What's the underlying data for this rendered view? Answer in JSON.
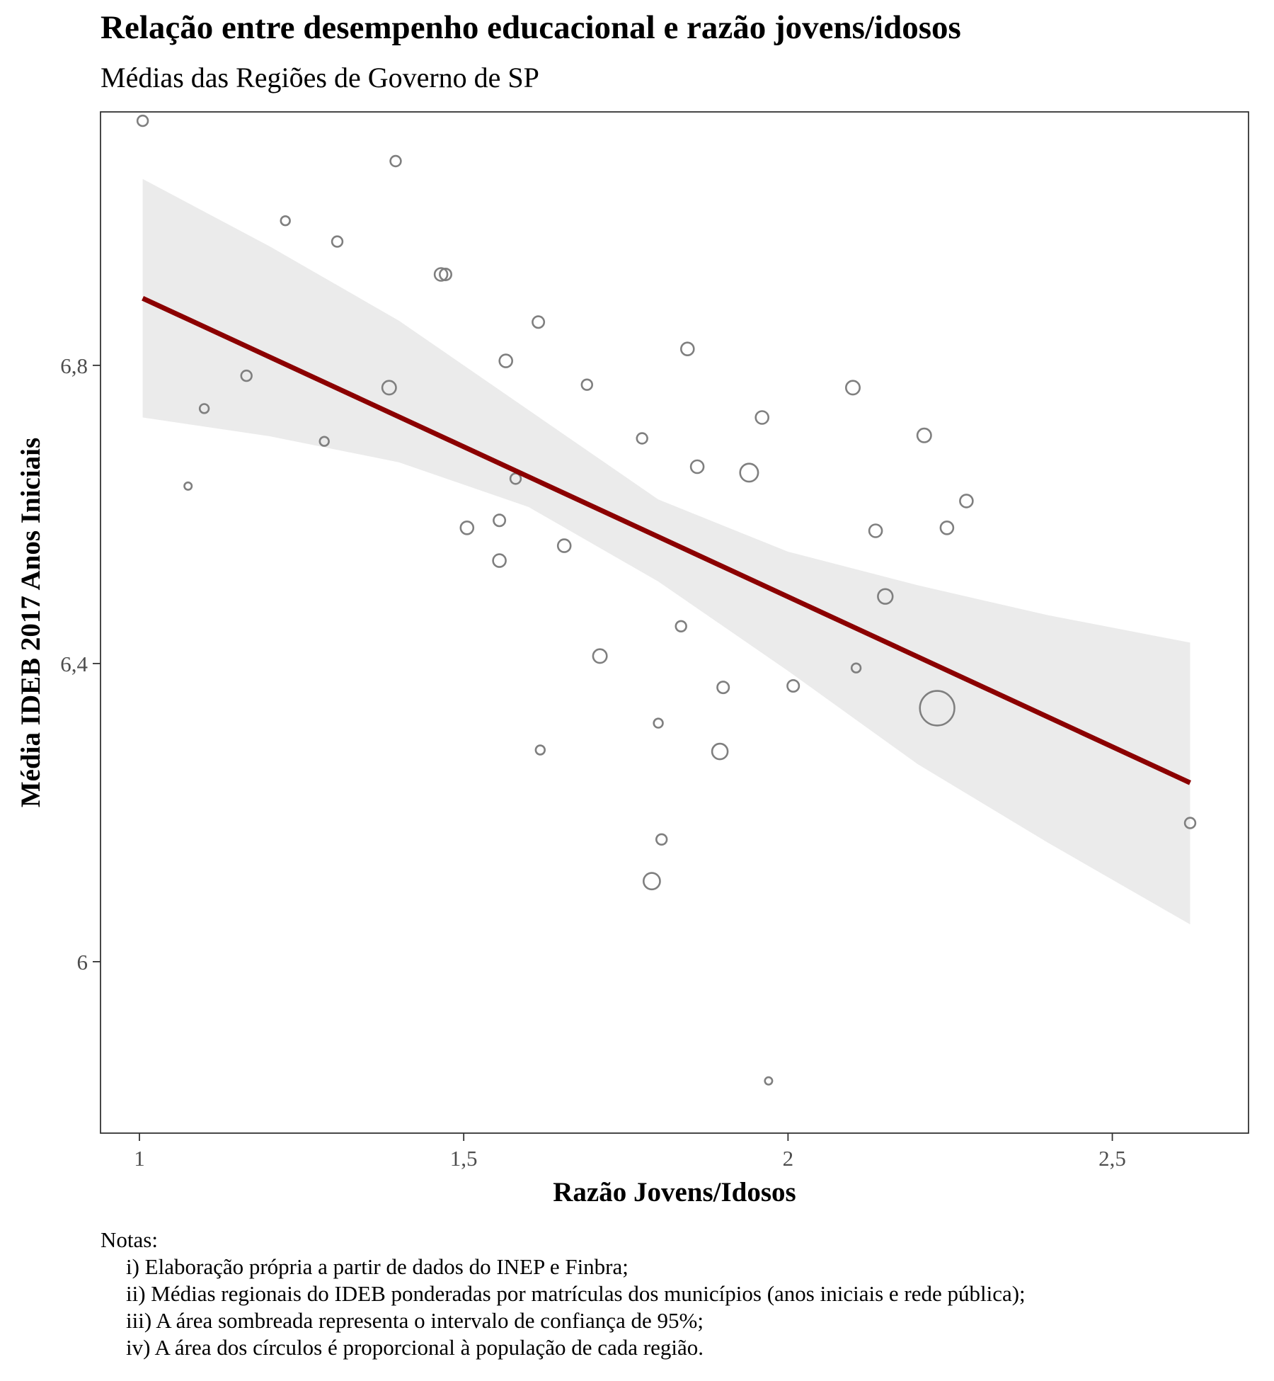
{
  "chart_data": {
    "type": "scatter",
    "title": "Relação entre desempenho educacional e razão jovens/idosos",
    "subtitle": "Médias das Regiões de Governo de SP",
    "xlabel": "Razão Jovens/Idosos",
    "ylabel": "Média IDEB 2017 Anos Iniciais",
    "xlim": [
      0.94,
      2.71
    ],
    "ylim": [
      5.77,
      7.14
    ],
    "x_ticks": [
      1,
      1.5,
      2,
      2.5
    ],
    "x_tick_labels": [
      "1",
      "1,5",
      "2",
      "2,5"
    ],
    "y_ticks": [
      6.0,
      6.4,
      6.8
    ],
    "y_tick_labels": [
      "6",
      "6,4",
      "6,8"
    ],
    "grid": false,
    "legend": "none",
    "point_size_encodes": "population",
    "point_color": "#7f7f7f",
    "points": [
      {
        "x": 1.005,
        "y": 7.128,
        "size": 2
      },
      {
        "x": 1.395,
        "y": 7.074,
        "size": 2
      },
      {
        "x": 1.225,
        "y": 6.994,
        "size": 1.5
      },
      {
        "x": 1.305,
        "y": 6.966,
        "size": 2
      },
      {
        "x": 1.465,
        "y": 6.922,
        "size": 3
      },
      {
        "x": 1.472,
        "y": 6.922,
        "size": 2.5
      },
      {
        "x": 1.615,
        "y": 6.858,
        "size": 2.5
      },
      {
        "x": 1.845,
        "y": 6.822,
        "size": 3
      },
      {
        "x": 1.565,
        "y": 6.806,
        "size": 3
      },
      {
        "x": 1.165,
        "y": 6.786,
        "size": 2
      },
      {
        "x": 1.385,
        "y": 6.77,
        "size": 3.5
      },
      {
        "x": 1.69,
        "y": 6.774,
        "size": 2
      },
      {
        "x": 2.1,
        "y": 6.77,
        "size": 3.5
      },
      {
        "x": 1.1,
        "y": 6.742,
        "size": 1.5
      },
      {
        "x": 1.96,
        "y": 6.73,
        "size": 3
      },
      {
        "x": 1.775,
        "y": 6.702,
        "size": 2
      },
      {
        "x": 2.21,
        "y": 6.706,
        "size": 3.5
      },
      {
        "x": 1.285,
        "y": 6.698,
        "size": 1.5
      },
      {
        "x": 1.86,
        "y": 6.664,
        "size": 3
      },
      {
        "x": 1.94,
        "y": 6.656,
        "size": 6
      },
      {
        "x": 1.58,
        "y": 6.648,
        "size": 2
      },
      {
        "x": 1.075,
        "y": 6.638,
        "size": 1
      },
      {
        "x": 2.275,
        "y": 6.618,
        "size": 3
      },
      {
        "x": 1.555,
        "y": 6.592,
        "size": 2.5
      },
      {
        "x": 1.505,
        "y": 6.582,
        "size": 3
      },
      {
        "x": 2.245,
        "y": 6.582,
        "size": 3
      },
      {
        "x": 2.135,
        "y": 6.578,
        "size": 3
      },
      {
        "x": 1.655,
        "y": 6.558,
        "size": 3
      },
      {
        "x": 1.555,
        "y": 6.538,
        "size": 3
      },
      {
        "x": 2.15,
        "y": 6.49,
        "size": 4
      },
      {
        "x": 1.835,
        "y": 6.45,
        "size": 2
      },
      {
        "x": 1.71,
        "y": 6.41,
        "size": 3.5
      },
      {
        "x": 2.105,
        "y": 6.394,
        "size": 1.5
      },
      {
        "x": 1.9,
        "y": 6.368,
        "size": 2.5
      },
      {
        "x": 2.008,
        "y": 6.37,
        "size": 2.5
      },
      {
        "x": 2.23,
        "y": 6.34,
        "size": 22
      },
      {
        "x": 1.8,
        "y": 6.32,
        "size": 1.5
      },
      {
        "x": 1.618,
        "y": 6.284,
        "size": 1.5
      },
      {
        "x": 1.895,
        "y": 6.282,
        "size": 4.5
      },
      {
        "x": 2.62,
        "y": 6.186,
        "size": 2
      },
      {
        "x": 1.805,
        "y": 6.164,
        "size": 2
      },
      {
        "x": 1.79,
        "y": 6.108,
        "size": 5
      },
      {
        "x": 1.97,
        "y": 5.84,
        "size": 1
      }
    ],
    "trend_line": {
      "color": "#8b0000",
      "x": [
        1.005,
        2.62
      ],
      "y": [
        6.89,
        6.24
      ]
    },
    "confidence_band": {
      "level": "95%",
      "color": "#ebebeb",
      "x": [
        1.005,
        1.2,
        1.4,
        1.6,
        1.8,
        2.0,
        2.2,
        2.4,
        2.62
      ],
      "upper": [
        7.05,
        6.96,
        6.86,
        6.74,
        6.62,
        6.55,
        6.505,
        6.465,
        6.428
      ],
      "lower": [
        6.73,
        6.705,
        6.67,
        6.61,
        6.51,
        6.39,
        6.265,
        6.16,
        6.05
      ]
    }
  },
  "notes": {
    "heading": "Notas:",
    "lines": [
      "i) Elaboração própria a partir de dados do INEP e Finbra;",
      "ii) Médias regionais do IDEB ponderadas por matrículas dos municípios (anos iniciais e rede pública);",
      "iii) A área sombreada representa o intervalo de confiança de 95%;",
      "iv) A área dos círculos é proporcional à população de cada região."
    ]
  }
}
